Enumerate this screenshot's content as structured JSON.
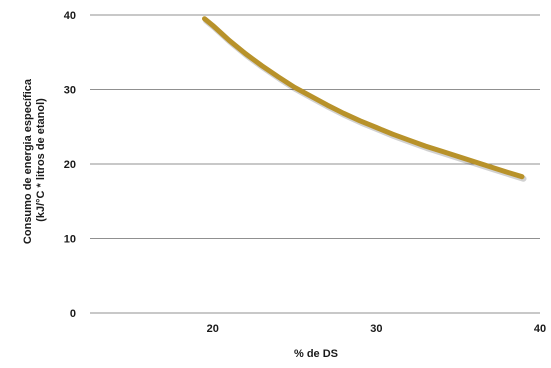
{
  "chart_data": {
    "type": "line",
    "xlabel": "% de DS",
    "ylabel_lines": [
      "Consumo de energia específica",
      "(kJ/°C * litros de etanol)"
    ],
    "xlim": [
      12.5,
      40
    ],
    "ylim": [
      0,
      40
    ],
    "x_ticks": [
      20,
      30,
      40
    ],
    "y_ticks": [
      0,
      10,
      20,
      30,
      40
    ],
    "grid": "horizontal",
    "legend": "none",
    "series": [
      {
        "color": "#b8922a",
        "points": [
          [
            19.5,
            39.5
          ],
          [
            20,
            38.6
          ],
          [
            21,
            36.6
          ],
          [
            22,
            34.8
          ],
          [
            23,
            33.2
          ],
          [
            24,
            31.7
          ],
          [
            25,
            30.3
          ],
          [
            26,
            29.1
          ],
          [
            27,
            27.9
          ],
          [
            28,
            26.8
          ],
          [
            29,
            25.8
          ],
          [
            30,
            24.9
          ],
          [
            31,
            24.0
          ],
          [
            32,
            23.2
          ],
          [
            33,
            22.4
          ],
          [
            34,
            21.7
          ],
          [
            35,
            21.0
          ],
          [
            36,
            20.3
          ],
          [
            37,
            19.6
          ],
          [
            38,
            18.9
          ],
          [
            38.9,
            18.3
          ]
        ]
      }
    ]
  }
}
